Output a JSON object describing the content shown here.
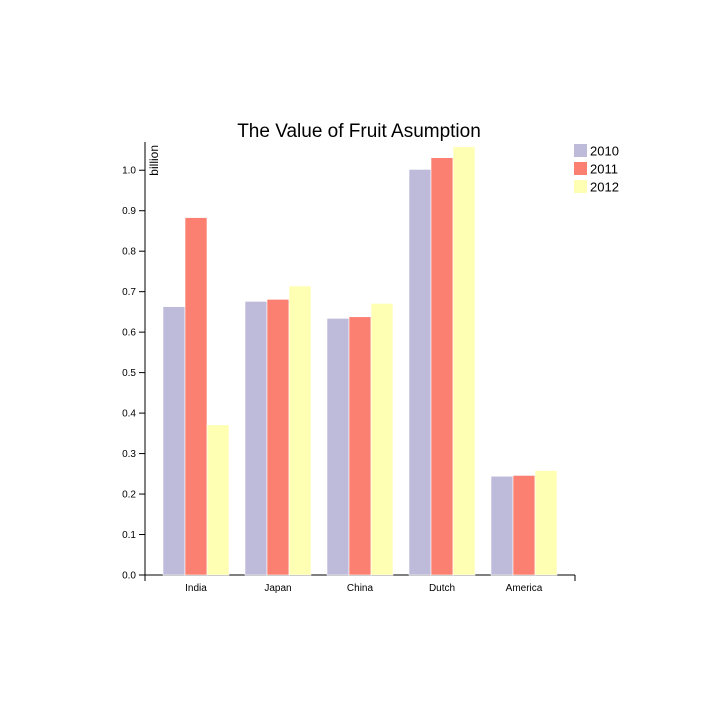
{
  "chart_data": {
    "type": "bar",
    "title": "The Value of Fruit Asumption",
    "xlabel": "",
    "ylabel": "billion",
    "ylim": [
      0,
      1.05
    ],
    "yticks": [
      0.0,
      0.1,
      0.2,
      0.3,
      0.4,
      0.5,
      0.6,
      0.7,
      0.8,
      0.9,
      1.0
    ],
    "ytick_labels": [
      "0.0",
      "0.1",
      "0.2",
      "0.3",
      "0.4",
      "0.5",
      "0.6",
      "0.7",
      "0.8",
      "0.9",
      "1.0"
    ],
    "categories": [
      "India",
      "Japan",
      "China",
      "Dutch",
      "America"
    ],
    "series": [
      {
        "name": "2010",
        "color": "#bebada",
        "values": [
          0.663,
          0.676,
          0.634,
          1.002,
          0.244
        ]
      },
      {
        "name": "2011",
        "color": "#fb8072",
        "values": [
          0.883,
          0.681,
          0.638,
          1.031,
          0.246
        ]
      },
      {
        "name": "2012",
        "color": "#ffffb3",
        "values": [
          0.371,
          0.714,
          0.671,
          1.058,
          0.258
        ]
      }
    ],
    "legend_position": "top-right",
    "grid": false
  }
}
